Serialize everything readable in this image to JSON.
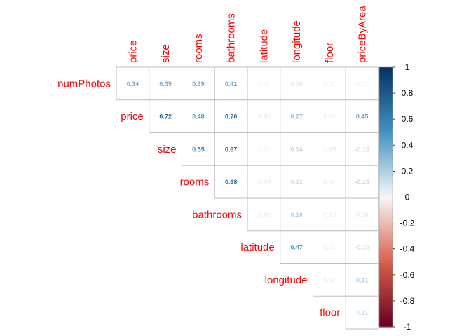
{
  "chart_data": {
    "type": "heatmap",
    "subtype": "upper-triangular correlation matrix",
    "row_labels": [
      "numPhotos",
      "price",
      "size",
      "rooms",
      "bathrooms",
      "latitude",
      "longitude",
      "floor"
    ],
    "col_labels": [
      "price",
      "size",
      "rooms",
      "bathrooms",
      "latitude",
      "longitude",
      "floor",
      "priceByArea"
    ],
    "matrix": [
      [
        0.34,
        0.35,
        0.39,
        0.41,
        0.0,
        0.06,
        0.01,
        0.01
      ],
      [
        null,
        0.72,
        0.48,
        0.7,
        -0.05,
        0.27,
        0.03,
        0.45
      ],
      [
        null,
        null,
        0.55,
        0.67,
        -0.01,
        0.14,
        -0.05,
        -0.12
      ],
      [
        null,
        null,
        null,
        0.68,
        -0.03,
        0.12,
        0.04,
        -0.15
      ],
      [
        null,
        null,
        null,
        null,
        -0.03,
        0.18,
        -0.05,
        0.06
      ],
      [
        null,
        null,
        null,
        null,
        null,
        0.47,
        0.02,
        -0.1
      ],
      [
        null,
        null,
        null,
        null,
        null,
        null,
        0.03,
        0.21
      ],
      [
        null,
        null,
        null,
        null,
        null,
        null,
        null,
        0.11
      ]
    ],
    "value_range": [
      -1,
      1
    ],
    "colorbar_ticks": [
      "1",
      "0.8",
      "0.6",
      "0.4",
      "0.2",
      "0",
      "-0.2",
      "-0.4",
      "-0.6",
      "-0.8",
      "-1"
    ],
    "colormap": {
      "negative_end": "#67001f",
      "negative_mid": "#d6604d",
      "zero": "#f7f7f7",
      "positive_mid": "#4393c3",
      "positive_end": "#053061"
    },
    "label_color": "#ff0000",
    "grid": true,
    "colorbar_position": "right"
  }
}
